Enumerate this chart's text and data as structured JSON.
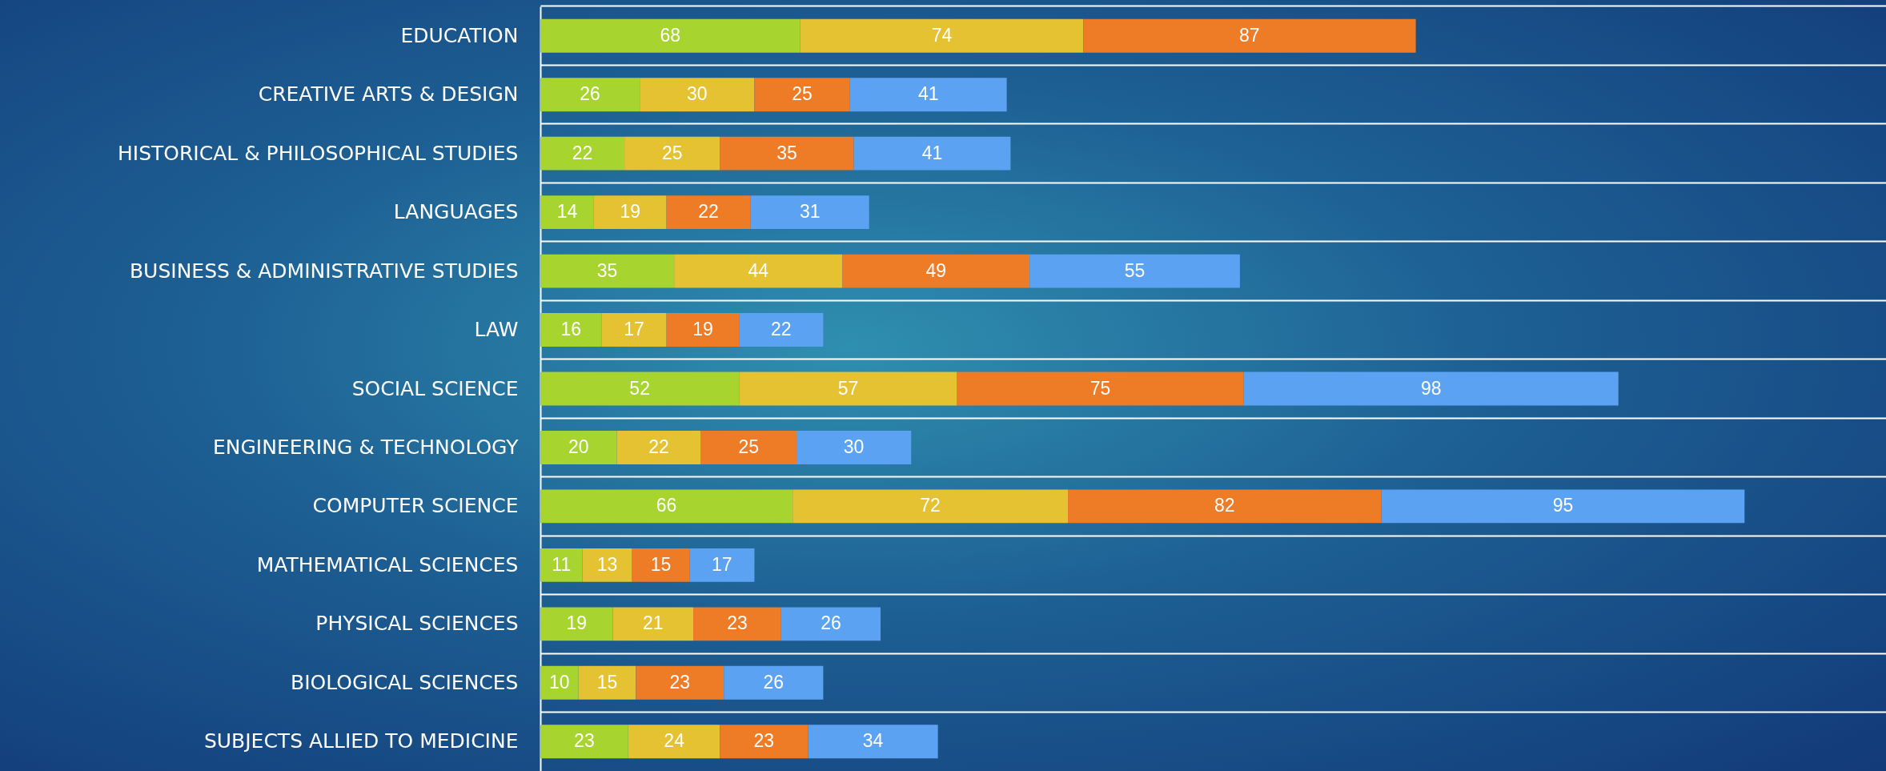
{
  "chart_data": {
    "type": "bar",
    "orientation": "horizontal",
    "stacked": true,
    "data_labels": true,
    "grid": "y",
    "xlim": [
      0,
      352
    ],
    "tick_labels": "y",
    "categories": [
      "EDUCATION",
      "CREATIVE ARTS & DESIGN",
      "HISTORICAL & PHILOSOPHICAL STUDIES",
      "LANGUAGES",
      "BUSINESS & ADMINISTRATIVE STUDIES",
      "LAW",
      "SOCIAL SCIENCE",
      "ENGINEERING & TECHNOLOGY",
      "COMPUTER SCIENCE",
      "MATHEMATICAL SCIENCES",
      "PHYSICAL SCIENCES",
      "BIOLOGICAL SCIENCES",
      "SUBJECTS ALLIED TO MEDICINE"
    ],
    "series": [
      {
        "color": "#a8d42f",
        "values": [
          68,
          26,
          22,
          14,
          35,
          16,
          52,
          20,
          66,
          11,
          19,
          10,
          23
        ]
      },
      {
        "color": "#e5c232",
        "values": [
          74,
          30,
          25,
          19,
          44,
          17,
          57,
          22,
          72,
          13,
          21,
          15,
          24
        ]
      },
      {
        "color": "#ee7b26",
        "values": [
          87,
          25,
          35,
          22,
          49,
          19,
          75,
          25,
          82,
          15,
          23,
          23,
          23
        ]
      },
      {
        "color": "#5ba3f2",
        "values": [
          null,
          41,
          41,
          31,
          55,
          22,
          98,
          30,
          95,
          17,
          26,
          26,
          34
        ]
      }
    ]
  }
}
